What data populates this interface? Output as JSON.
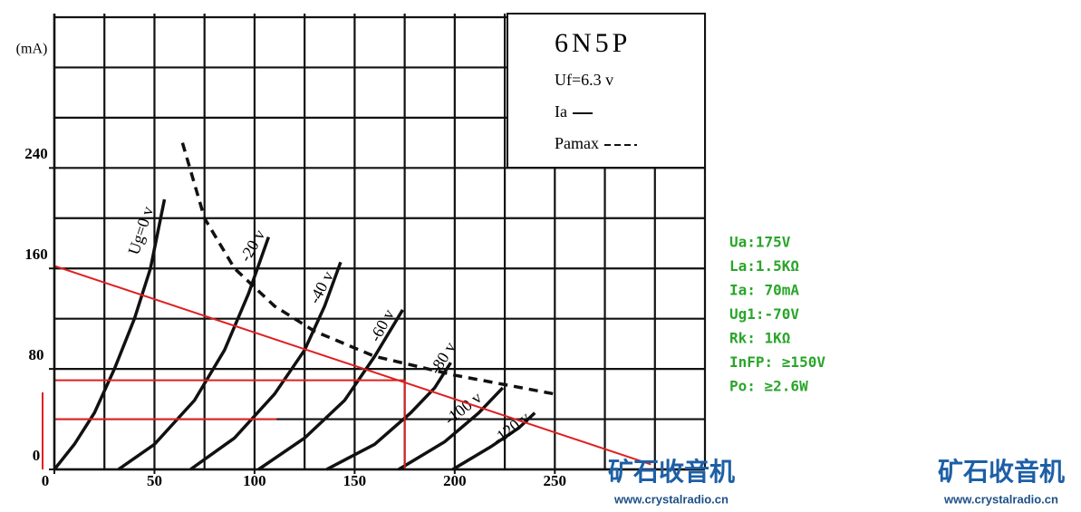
{
  "chart_data": {
    "type": "line",
    "y_unit": "(mA)",
    "xlim": [
      0,
      325
    ],
    "ylim": [
      0,
      360
    ],
    "xticks": [
      0,
      50,
      100,
      150,
      200,
      250
    ],
    "yticks": [
      0,
      80,
      160,
      240
    ],
    "grid": true,
    "x_grid_step": 25,
    "y_grid_step": 40,
    "series": [
      {
        "name": "Ug=0 v",
        "color": "#111111",
        "dashed": false,
        "x": [
          0,
          10,
          20,
          30,
          40,
          48,
          55
        ],
        "values": [
          0,
          20,
          45,
          80,
          120,
          160,
          215
        ]
      },
      {
        "name": "-20 v",
        "color": "#111111",
        "dashed": false,
        "x": [
          32,
          50,
          70,
          85,
          97,
          107
        ],
        "values": [
          0,
          20,
          55,
          95,
          140,
          185
        ]
      },
      {
        "name": "-40 v",
        "color": "#111111",
        "dashed": false,
        "x": [
          68,
          90,
          110,
          125,
          135,
          143
        ],
        "values": [
          0,
          25,
          60,
          95,
          130,
          165
        ]
      },
      {
        "name": "-60 v",
        "color": "#111111",
        "dashed": false,
        "x": [
          102,
          125,
          145,
          160,
          174
        ],
        "values": [
          0,
          25,
          55,
          90,
          127
        ]
      },
      {
        "name": "-80 v",
        "color": "#111111",
        "dashed": false,
        "x": [
          136,
          160,
          178,
          190,
          198
        ],
        "values": [
          0,
          20,
          45,
          65,
          85
        ]
      },
      {
        "name": "-100 v",
        "color": "#111111",
        "dashed": false,
        "x": [
          172,
          195,
          212,
          224
        ],
        "values": [
          0,
          22,
          45,
          65
        ]
      },
      {
        "name": "-120 v",
        "color": "#111111",
        "dashed": false,
        "x": [
          199,
          218,
          232,
          240
        ],
        "values": [
          0,
          18,
          33,
          45
        ]
      },
      {
        "name": "Pamax",
        "color": "#111111",
        "dashed": true,
        "x": [
          64,
          75,
          90,
          110,
          130,
          160,
          200,
          250
        ],
        "values": [
          260,
          200,
          160,
          130,
          110,
          90,
          75,
          60
        ]
      }
    ],
    "red_lines": [
      {
        "color": "#e02020",
        "x": [
          0,
          298
        ],
        "values": [
          162,
          4
        ]
      },
      {
        "color": "#e02020",
        "x": [
          0,
          175
        ],
        "values": [
          71,
          71
        ]
      },
      {
        "color": "#e02020",
        "x": [
          175,
          175
        ],
        "values": [
          71,
          0
        ]
      },
      {
        "color": "#e02020",
        "x": [
          0,
          111
        ],
        "values": [
          40,
          40
        ]
      }
    ],
    "box": {
      "title": "6N5P",
      "filament": "Uf=6.3 v",
      "legend": [
        "Ia",
        "Pamax"
      ]
    },
    "notes": [
      "Ua:175V",
      "La:1.5KΩ",
      "Ia: 70mA",
      "Ug1:-70V",
      "Rk: 1KΩ",
      "InFP: ≥150V",
      "Po: ≥2.6W"
    ],
    "watermarks": [
      {
        "brand": "矿石收音机",
        "url": "www.crystalradio.cn"
      },
      {
        "brand": "矿石收音机",
        "url": "www.crystalradio.cn"
      }
    ]
  }
}
